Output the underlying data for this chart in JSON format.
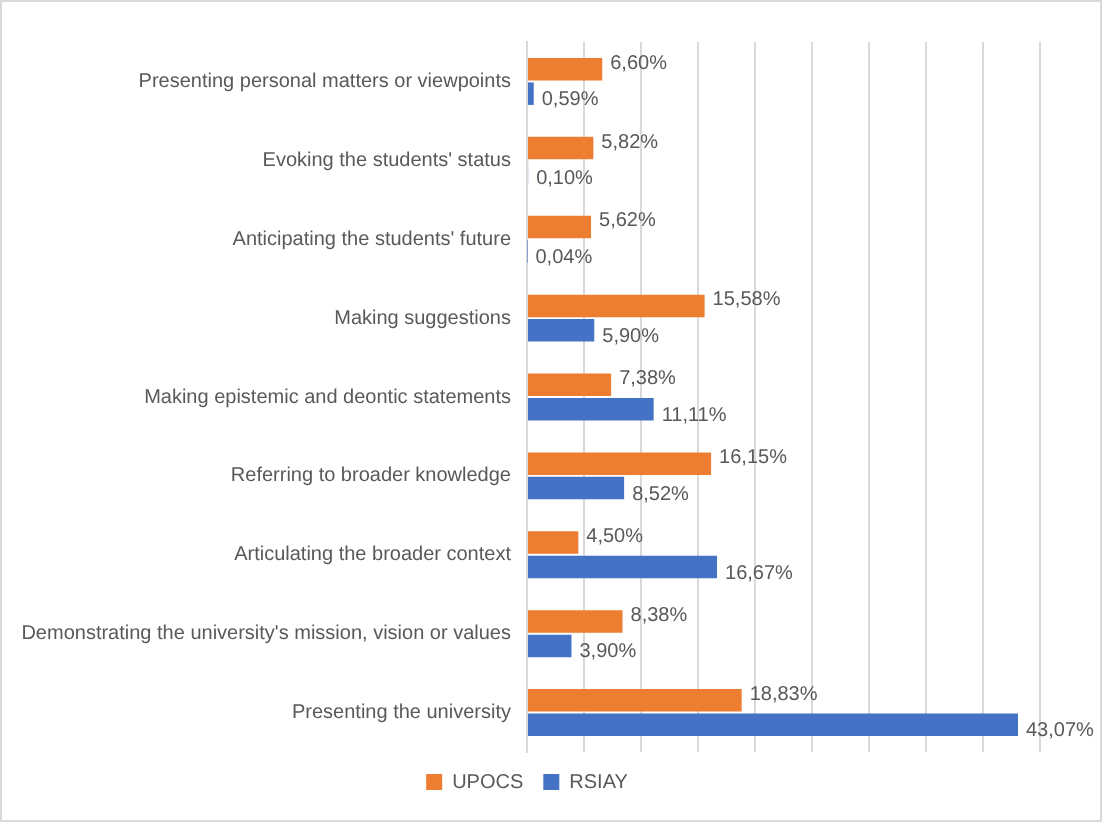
{
  "chart_data": {
    "type": "bar",
    "orientation": "horizontal",
    "categories": [
      "Presenting personal matters or viewpoints",
      "Evoking the students' status",
      "Anticipating the students' future",
      "Making suggestions",
      "Making epistemic and deontic statements",
      "Referring to broader knowledge",
      "Articulating the broader context",
      "Demonstrating the university's mission, vision or values",
      "Presenting the university"
    ],
    "series": [
      {
        "name": "UPOCS",
        "color": "#ed7d31",
        "values": [
          6.6,
          5.82,
          5.62,
          15.58,
          7.38,
          16.15,
          4.5,
          8.38,
          18.83
        ],
        "value_labels": [
          "6,60%",
          "5,82%",
          "5,62%",
          "15,58%",
          "7,38%",
          "16,15%",
          "4,50%",
          "8,38%",
          "18,83%"
        ]
      },
      {
        "name": "RSIAY",
        "color": "#4472c4",
        "values": [
          0.59,
          0.1,
          0.04,
          5.9,
          11.11,
          8.52,
          16.67,
          3.9,
          43.07
        ],
        "value_labels": [
          "0,59%",
          "0,10%",
          "0,04%",
          "5,90%",
          "11,11%",
          "8,52%",
          "16,67%",
          "3,90%",
          "43,07%"
        ]
      }
    ],
    "xlim": [
      0,
      45
    ],
    "xticks": [
      {
        "value": 0,
        "label": null
      },
      {
        "value": 5,
        "label": null
      },
      {
        "value": 10,
        "label": null
      },
      {
        "value": 15,
        "label": null
      },
      {
        "value": 20,
        "label": null
      },
      {
        "value": 25,
        "label": null
      },
      {
        "value": 30,
        "label": null
      },
      {
        "value": 35,
        "label": null
      },
      {
        "value": 40,
        "label": null
      },
      {
        "value": 45,
        "label": null
      }
    ],
    "tick_labels": "y",
    "grid": "x",
    "legend": "bottom"
  }
}
